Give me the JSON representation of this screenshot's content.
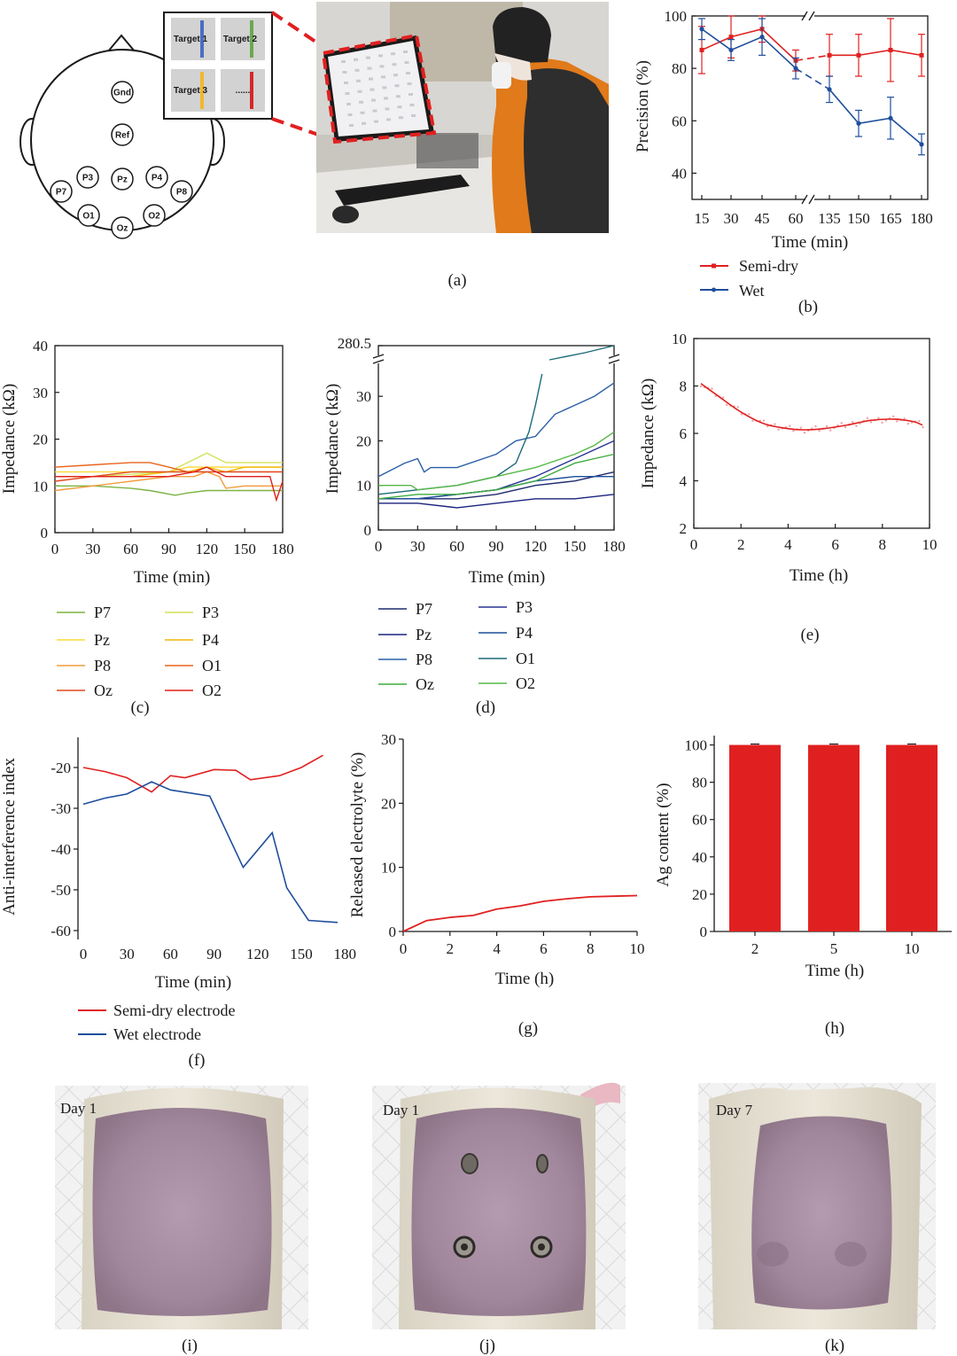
{
  "panel_a": {
    "label": "(a)",
    "electrodes": [
      "Gnd",
      "Ref",
      "P3",
      "Pz",
      "P4",
      "P7",
      "P8",
      "O1",
      "Oz",
      "O2"
    ],
    "targets": [
      "Target 1",
      "Target 2",
      "Target 3",
      "......"
    ],
    "target_colors": [
      "#4a6fc0",
      "#6aa84f",
      "#f1b82d",
      "#d62728"
    ],
    "photo": "subject wearing eeg cap in front of monitor with ssvep target grid"
  },
  "labels": {
    "b": "(b)",
    "c": "(c)",
    "d": "(d)",
    "e": "(e)",
    "f": "(f)",
    "g": "(g)",
    "h": "(h)",
    "i": "(i)",
    "j": "(j)",
    "k": "(k)"
  },
  "colors": {
    "red": "#e02020",
    "blue": "#1f4e9c"
  },
  "chart_data": [
    {
      "id": "b",
      "type": "line",
      "xlabel": "Time (min)",
      "ylabel": "Precision (%)",
      "categories": [
        "15",
        "30",
        "45",
        "60",
        "135",
        "150",
        "165",
        "180"
      ],
      "ylim": [
        30,
        100
      ],
      "yticks": [
        40,
        60,
        80,
        100
      ],
      "axis_break": "between 60 and 135",
      "series": [
        {
          "name": "Semi-dry",
          "color": "#e02020",
          "values": [
            87,
            92,
            95,
            83,
            85,
            85,
            87,
            85
          ],
          "err": [
            9,
            8,
            5,
            4,
            8,
            8,
            12,
            8
          ]
        },
        {
          "name": "Wet",
          "color": "#1f4e9c",
          "values": [
            95,
            87,
            92,
            80,
            72,
            59,
            61,
            51
          ],
          "err": [
            4,
            4,
            7,
            4,
            5,
            5,
            8,
            4
          ]
        }
      ]
    },
    {
      "id": "c",
      "type": "line",
      "xlabel": "Time (min)",
      "ylabel": "Impedance (kΩ)",
      "xlim": [
        0,
        180
      ],
      "xticks": [
        0,
        30,
        60,
        90,
        120,
        150,
        180
      ],
      "ylim": [
        0,
        40
      ],
      "yticks": [
        0,
        10,
        20,
        30,
        40
      ],
      "series": [
        {
          "name": "P7",
          "color": "#7cb342",
          "x": [
            0,
            30,
            60,
            75,
            95,
            105,
            120,
            135,
            150,
            165,
            180
          ],
          "y": [
            10,
            10,
            9.5,
            9,
            8,
            8.5,
            9,
            9,
            9,
            9,
            9
          ]
        },
        {
          "name": "P3",
          "color": "#d4e157",
          "x": [
            0,
            30,
            60,
            90,
            105,
            120,
            135,
            150,
            165,
            180
          ],
          "y": [
            12,
            12,
            12.5,
            13,
            15,
            17,
            15,
            15,
            15,
            15
          ]
        },
        {
          "name": "Pz",
          "color": "#fdd835",
          "x": [
            0,
            30,
            60,
            90,
            105,
            120,
            135,
            150,
            165,
            180
          ],
          "y": [
            13,
            13,
            13,
            13,
            14,
            14,
            14,
            14,
            14,
            14
          ]
        },
        {
          "name": "P4",
          "color": "#f2b705",
          "x": [
            0,
            30,
            60,
            90,
            105,
            120,
            135,
            150,
            165,
            180
          ],
          "y": [
            12,
            12,
            12,
            13,
            13,
            14,
            13,
            14,
            14,
            14
          ]
        },
        {
          "name": "P8",
          "color": "#f39c3c",
          "x": [
            0,
            30,
            60,
            90,
            110,
            120,
            130,
            135,
            150,
            165,
            180
          ],
          "y": [
            9,
            10,
            11,
            12,
            12,
            13,
            12,
            9.5,
            10,
            10,
            10
          ]
        },
        {
          "name": "O1",
          "color": "#e8631c",
          "x": [
            0,
            30,
            60,
            75,
            90,
            105,
            120,
            135,
            150,
            165,
            180
          ],
          "y": [
            14,
            14.5,
            15,
            15,
            14,
            13,
            13,
            13,
            13,
            13,
            13
          ]
        },
        {
          "name": "Oz",
          "color": "#e04a1f",
          "x": [
            0,
            30,
            60,
            90,
            105,
            120,
            135,
            150,
            165,
            180
          ],
          "y": [
            11,
            12,
            13,
            13,
            13,
            13,
            13,
            13,
            13,
            13
          ]
        },
        {
          "name": "O2",
          "color": "#e0201c",
          "x": [
            0,
            30,
            60,
            90,
            110,
            120,
            135,
            150,
            165,
            170,
            175,
            180
          ],
          "y": [
            12,
            12,
            12,
            12,
            13,
            14,
            12,
            12,
            12,
            12,
            7,
            11
          ]
        }
      ]
    },
    {
      "id": "d",
      "type": "line",
      "xlabel": "Time (min)",
      "ylabel": "Impedance (kΩ)",
      "xlim": [
        0,
        180
      ],
      "xticks": [
        0,
        30,
        60,
        90,
        120,
        150,
        180
      ],
      "ylim": [
        0,
        35
      ],
      "yticks": [
        0,
        10,
        20,
        30
      ],
      "break_label": "280.5",
      "series": [
        {
          "name": "P7",
          "color": "#1e2a6e",
          "x": [
            0,
            30,
            60,
            90,
            120,
            150,
            180
          ],
          "y": [
            7,
            7,
            7,
            8,
            10,
            11,
            13
          ]
        },
        {
          "name": "P3",
          "color": "#283593",
          "x": [
            0,
            30,
            60,
            90,
            120,
            150,
            180
          ],
          "y": [
            7,
            7,
            8,
            9,
            12,
            16,
            20
          ]
        },
        {
          "name": "Pz",
          "color": "#1a237e",
          "x": [
            0,
            30,
            60,
            90,
            120,
            150,
            180
          ],
          "y": [
            6,
            6,
            5,
            6,
            7,
            7,
            8
          ]
        },
        {
          "name": "P4",
          "color": "#1f4e9c",
          "x": [
            0,
            30,
            60,
            90,
            120,
            150,
            180
          ],
          "y": [
            7,
            7,
            8,
            9,
            11,
            12,
            12
          ]
        },
        {
          "name": "P8",
          "color": "#2b5ea7",
          "x": [
            0,
            20,
            30,
            35,
            40,
            60,
            90,
            105,
            120,
            135,
            150,
            165,
            180
          ],
          "y": [
            12,
            15,
            16,
            13,
            14,
            14,
            17,
            20,
            21,
            26,
            28,
            30,
            33
          ]
        },
        {
          "name": "O1",
          "color": "#1d6a7a",
          "x": [
            0,
            30,
            60,
            75,
            90,
            105,
            115,
            120,
            125
          ],
          "y": [
            8,
            9,
            10,
            11,
            12,
            15,
            22,
            28,
            35
          ]
        },
        {
          "name": "Oz",
          "color": "#3cab3c",
          "x": [
            0,
            30,
            60,
            90,
            105,
            120,
            135,
            150,
            165,
            180
          ],
          "y": [
            7,
            8,
            8,
            9,
            10,
            11,
            13,
            15,
            16,
            17
          ]
        },
        {
          "name": "O2",
          "color": "#57b848",
          "x": [
            0,
            25,
            30,
            60,
            90,
            120,
            150,
            165,
            180
          ],
          "y": [
            10,
            10,
            9,
            10,
            12,
            14,
            17,
            19,
            22
          ]
        }
      ]
    },
    {
      "id": "e",
      "type": "line",
      "xlabel": "Time (h)",
      "ylabel": "Impedance (kΩ)",
      "xlim": [
        0,
        10
      ],
      "xticks": [
        0,
        2,
        4,
        6,
        8,
        10
      ],
      "ylim": [
        2,
        10
      ],
      "yticks": [
        2,
        4,
        6,
        8,
        10
      ],
      "series": [
        {
          "name": "",
          "color": "#e02020",
          "x": [
            0.3,
            1,
            2,
            3,
            4,
            4.7,
            5.5,
            6.5,
            7.5,
            8.5,
            9.3,
            9.7
          ],
          "y": [
            8.1,
            7.6,
            6.9,
            6.4,
            6.2,
            6.15,
            6.2,
            6.35,
            6.55,
            6.6,
            6.5,
            6.35
          ]
        }
      ]
    },
    {
      "id": "f",
      "type": "line",
      "xlabel": "Time (min)",
      "ylabel": "Anti-interference index",
      "xlim": [
        -5,
        185
      ],
      "xticks": [
        0,
        30,
        60,
        90,
        120,
        150,
        180
      ],
      "ylim": [
        -62,
        -15
      ],
      "yticks": [
        -60,
        -50,
        -40,
        -30,
        -20
      ],
      "series": [
        {
          "name": "Semi-dry electrode",
          "color": "#e02020",
          "x": [
            0,
            15,
            30,
            47,
            60,
            70,
            90,
            105,
            115,
            135,
            150,
            165
          ],
          "y": [
            -20,
            -21,
            -22.5,
            -26,
            -22,
            -22.5,
            -20.5,
            -20.7,
            -23,
            -22,
            -20,
            -17
          ]
        },
        {
          "name": "Wet electrode",
          "color": "#1f4e9c",
          "x": [
            0,
            15,
            30,
            47,
            60,
            87,
            110,
            130,
            140,
            155,
            175
          ],
          "y": [
            -29,
            -27.5,
            -26.5,
            -23.5,
            -25.5,
            -27,
            -44.5,
            -36,
            -49.5,
            -57.5,
            -58
          ]
        }
      ]
    },
    {
      "id": "g",
      "type": "line",
      "xlabel": "Time (h)",
      "ylabel": "Released electrolyte (%)",
      "xlim": [
        0,
        10
      ],
      "xticks": [
        0,
        2,
        4,
        6,
        8,
        10
      ],
      "ylim": [
        0,
        30
      ],
      "yticks": [
        0,
        10,
        20,
        30
      ],
      "series": [
        {
          "name": "",
          "color": "#e02020",
          "x": [
            0,
            1,
            2,
            3,
            4,
            5,
            6,
            7,
            8,
            9,
            10
          ],
          "y": [
            0,
            1.7,
            2.2,
            2.5,
            3.5,
            4,
            4.7,
            5.1,
            5.4,
            5.5,
            5.6
          ]
        }
      ]
    },
    {
      "id": "h",
      "type": "bar",
      "xlabel": "Time (h)",
      "ylabel": "Ag content (%)",
      "categories": [
        "2",
        "5",
        "10"
      ],
      "values": [
        100,
        100,
        100
      ],
      "ylim": [
        0,
        105
      ],
      "yticks": [
        0,
        20,
        40,
        60,
        80,
        100
      ],
      "color": "#e02020"
    }
  ],
  "photos": {
    "i": {
      "label": "(i)",
      "day": "Day 1"
    },
    "j": {
      "label": "(j)",
      "day": "Day 1"
    },
    "k": {
      "label": "(k)",
      "day": "Day 7"
    }
  }
}
